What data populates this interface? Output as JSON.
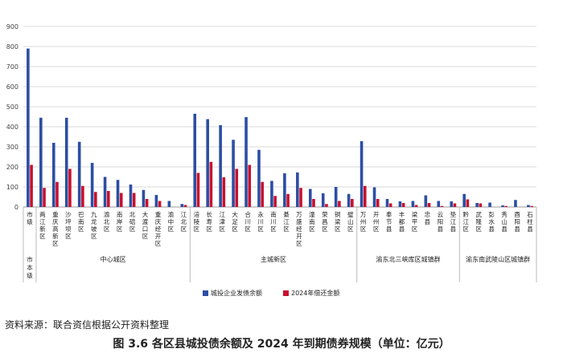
{
  "chart_data": {
    "type": "bar",
    "ylim": [
      0,
      900
    ],
    "yticks": [
      0,
      100,
      200,
      300,
      400,
      500,
      600,
      700,
      800,
      900
    ],
    "grid": true,
    "legend_position": "bottom",
    "categories": [
      "市级",
      "两江新区",
      "重庆高新区",
      "沙坪坝区",
      "巴南区",
      "九龙坡区",
      "渝北区",
      "南岸区",
      "北碚区",
      "大渡口区",
      "重庆经开区",
      "渝中区",
      "江北区",
      "涪陵区",
      "长寿区",
      "江津区",
      "大足区",
      "合川区",
      "永川区",
      "南川区",
      "綦江区",
      "万盛经开区",
      "潼南区",
      "荣昌区",
      "铜梁区",
      "璧山区",
      "万州区",
      "开州区",
      "奉节县",
      "丰都县",
      "梁平区",
      "忠县",
      "云阳县",
      "垫江县",
      "黔江区",
      "武隆区",
      "彭水县",
      "秀山县",
      "酉阳县",
      "石柱县"
    ],
    "series": [
      {
        "name": "城投企业发债余额",
        "color": "#2c4ea3",
        "values": [
          790,
          445,
          320,
          445,
          325,
          220,
          150,
          135,
          112,
          85,
          60,
          30,
          15,
          465,
          438,
          408,
          335,
          448,
          285,
          130,
          168,
          172,
          90,
          68,
          100,
          65,
          328,
          98,
          40,
          28,
          30,
          58,
          30,
          28,
          65,
          20,
          22,
          8,
          35,
          10
        ]
      },
      {
        "name": "2024年偿还金额",
        "color": "#c8102e",
        "values": [
          210,
          95,
          125,
          190,
          105,
          75,
          80,
          70,
          70,
          40,
          30,
          0,
          10,
          170,
          225,
          148,
          190,
          210,
          125,
          55,
          65,
          95,
          40,
          15,
          30,
          40,
          105,
          40,
          18,
          20,
          10,
          20,
          5,
          18,
          38,
          18,
          0,
          5,
          0,
          5
        ]
      }
    ],
    "groups": [
      {
        "label": "市本级",
        "start": 0,
        "end": 0
      },
      {
        "label": "中心城区",
        "start": 1,
        "end": 12
      },
      {
        "label": "主城新区",
        "start": 13,
        "end": 25
      },
      {
        "label": "渝东北三峡库区城镇群",
        "start": 26,
        "end": 33
      },
      {
        "label": "渝东南武陵山区城镇群",
        "start": 34,
        "end": 39
      }
    ]
  },
  "source_note": "资料来源：联合资信根据公开资料整理",
  "caption": "图 3.6   各区县城投债余额及 2024 年到期债券规模（单位：亿元）"
}
